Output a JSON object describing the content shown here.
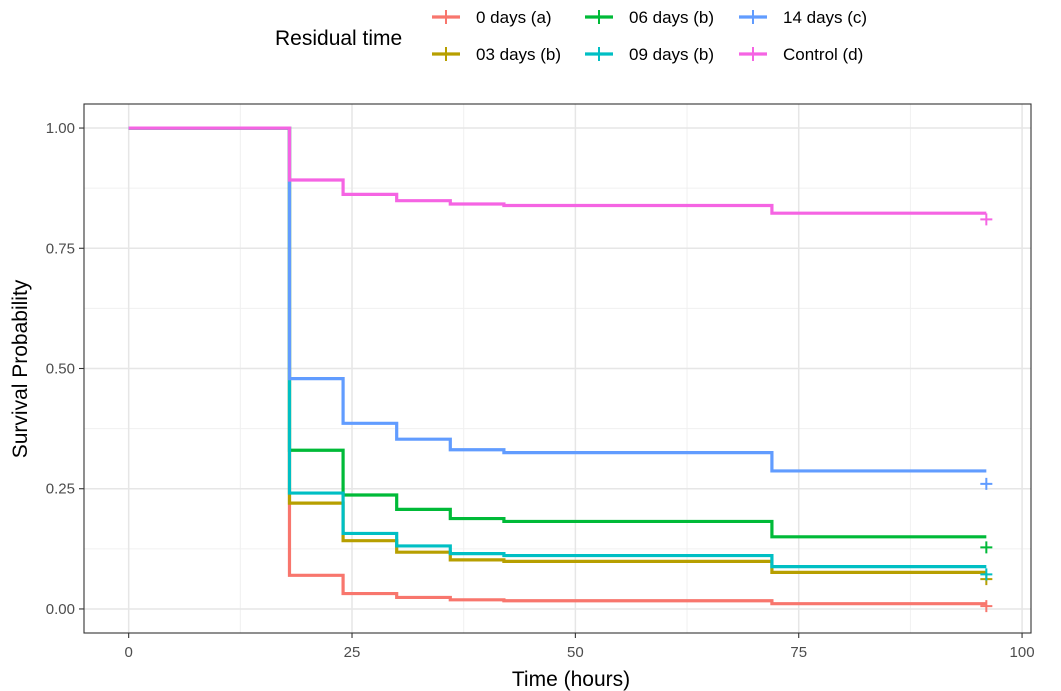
{
  "chart_data": {
    "type": "line",
    "subtype": "step",
    "title": "",
    "xlabel": "Time (hours)",
    "ylabel": "Survival Probability",
    "xlim": [
      -5,
      101
    ],
    "ylim": [
      -0.05,
      1.05
    ],
    "x_ticks": [
      0,
      25,
      50,
      75,
      100
    ],
    "x_tick_labels": [
      "0",
      "25",
      "50",
      "75",
      "100"
    ],
    "y_ticks": [
      0,
      0.25,
      0.5,
      0.75,
      1.0
    ],
    "y_tick_labels": [
      "0.00",
      "0.25",
      "0.50",
      "0.75",
      "1.00"
    ],
    "grid": true,
    "legend": {
      "title": "Residual time",
      "position": "top"
    },
    "series": [
      {
        "name": "0 days (a)",
        "color": "#f8766d",
        "points": [
          [
            0,
            1.0
          ],
          [
            18,
            0.07
          ],
          [
            24,
            0.032
          ],
          [
            30,
            0.024
          ],
          [
            36,
            0.019
          ],
          [
            42,
            0.017
          ],
          [
            72,
            0.011
          ],
          [
            96,
            0.011
          ]
        ],
        "censor": [
          96,
          0.006
        ]
      },
      {
        "name": "03 days (b)",
        "color": "#b79f00",
        "points": [
          [
            0,
            1.0
          ],
          [
            18,
            0.22
          ],
          [
            24,
            0.142
          ],
          [
            30,
            0.118
          ],
          [
            36,
            0.102
          ],
          [
            42,
            0.099
          ],
          [
            72,
            0.076
          ],
          [
            96,
            0.076
          ]
        ],
        "censor": [
          96,
          0.062
        ]
      },
      {
        "name": "06 days (b)",
        "color": "#00ba38",
        "points": [
          [
            0,
            1.0
          ],
          [
            18,
            0.33
          ],
          [
            24,
            0.237
          ],
          [
            30,
            0.207
          ],
          [
            36,
            0.188
          ],
          [
            42,
            0.182
          ],
          [
            72,
            0.15
          ],
          [
            96,
            0.15
          ]
        ],
        "censor": [
          96,
          0.128
        ]
      },
      {
        "name": "09 days (b)",
        "color": "#00bfc4",
        "points": [
          [
            0,
            1.0
          ],
          [
            18,
            0.241
          ],
          [
            24,
            0.157
          ],
          [
            30,
            0.131
          ],
          [
            36,
            0.115
          ],
          [
            42,
            0.111
          ],
          [
            72,
            0.088
          ],
          [
            96,
            0.088
          ]
        ],
        "censor": [
          96,
          0.072
        ]
      },
      {
        "name": "14 days (c)",
        "color": "#619cff",
        "points": [
          [
            0,
            1.0
          ],
          [
            18,
            0.479
          ],
          [
            24,
            0.386
          ],
          [
            30,
            0.353
          ],
          [
            36,
            0.331
          ],
          [
            42,
            0.325
          ],
          [
            72,
            0.287
          ],
          [
            96,
            0.287
          ]
        ],
        "censor": [
          96,
          0.26
        ]
      },
      {
        "name": "Control (d)",
        "color": "#f564e3",
        "points": [
          [
            0,
            1.0
          ],
          [
            18,
            0.892
          ],
          [
            24,
            0.862
          ],
          [
            30,
            0.849
          ],
          [
            36,
            0.842
          ],
          [
            42,
            0.839
          ],
          [
            72,
            0.823
          ],
          [
            96,
            0.823
          ]
        ],
        "censor": [
          96,
          0.81
        ]
      }
    ]
  }
}
